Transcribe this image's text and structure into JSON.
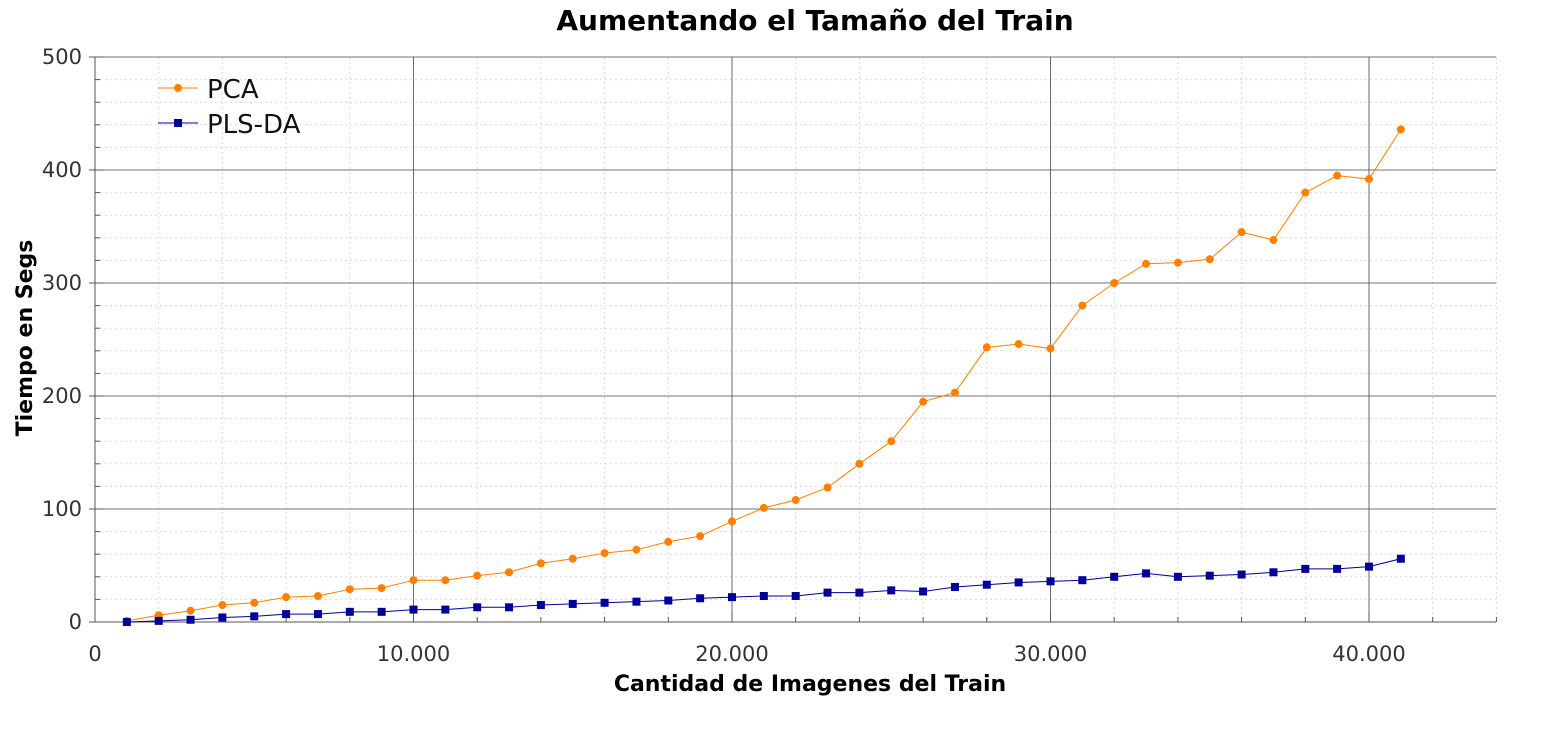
{
  "chart_data": {
    "type": "line",
    "title": "Aumentando el Tamaño del Train",
    "xlabel": "Cantidad de Imagenes del Train",
    "ylabel": "Tiempo en Segs",
    "xlim": [
      0,
      44000
    ],
    "ylim": [
      0,
      500
    ],
    "x_ticks": [
      0,
      10000,
      20000,
      30000,
      40000
    ],
    "x_tick_labels": [
      "0",
      "10.000",
      "20.000",
      "30.000",
      "40.000"
    ],
    "y_ticks": [
      0,
      100,
      200,
      300,
      400,
      500
    ],
    "y_tick_labels": [
      "0",
      "100",
      "200",
      "300",
      "400",
      "500"
    ],
    "grid": true,
    "legend_position": "top-left",
    "x": [
      1000,
      2000,
      3000,
      4000,
      5000,
      6000,
      7000,
      8000,
      9000,
      10000,
      11000,
      12000,
      13000,
      14000,
      15000,
      16000,
      17000,
      18000,
      19000,
      20000,
      21000,
      22000,
      23000,
      24000,
      25000,
      26000,
      27000,
      28000,
      29000,
      30000,
      31000,
      32000,
      33000,
      34000,
      35000,
      36000,
      37000,
      38000,
      39000,
      40000,
      41000
    ],
    "series": [
      {
        "name": "PCA",
        "color": "#ff8000",
        "marker": "circle",
        "values": [
          1,
          6,
          10,
          15,
          17,
          22,
          23,
          29,
          30,
          37,
          37,
          41,
          44,
          52,
          56,
          61,
          64,
          71,
          76,
          89,
          101,
          108,
          119,
          140,
          160,
          195,
          203,
          243,
          246,
          242,
          280,
          300,
          317,
          318,
          321,
          345,
          338,
          380,
          395,
          392,
          436
        ]
      },
      {
        "name": "PLS-DA",
        "color": "#000099",
        "marker": "square",
        "values": [
          0,
          1,
          2,
          4,
          5,
          7,
          7,
          9,
          9,
          11,
          11,
          13,
          13,
          15,
          16,
          17,
          18,
          19,
          21,
          22,
          23,
          23,
          26,
          26,
          28,
          27,
          31,
          33,
          35,
          36,
          37,
          40,
          43,
          40,
          41,
          42,
          44,
          47,
          47,
          49,
          56
        ]
      }
    ]
  }
}
